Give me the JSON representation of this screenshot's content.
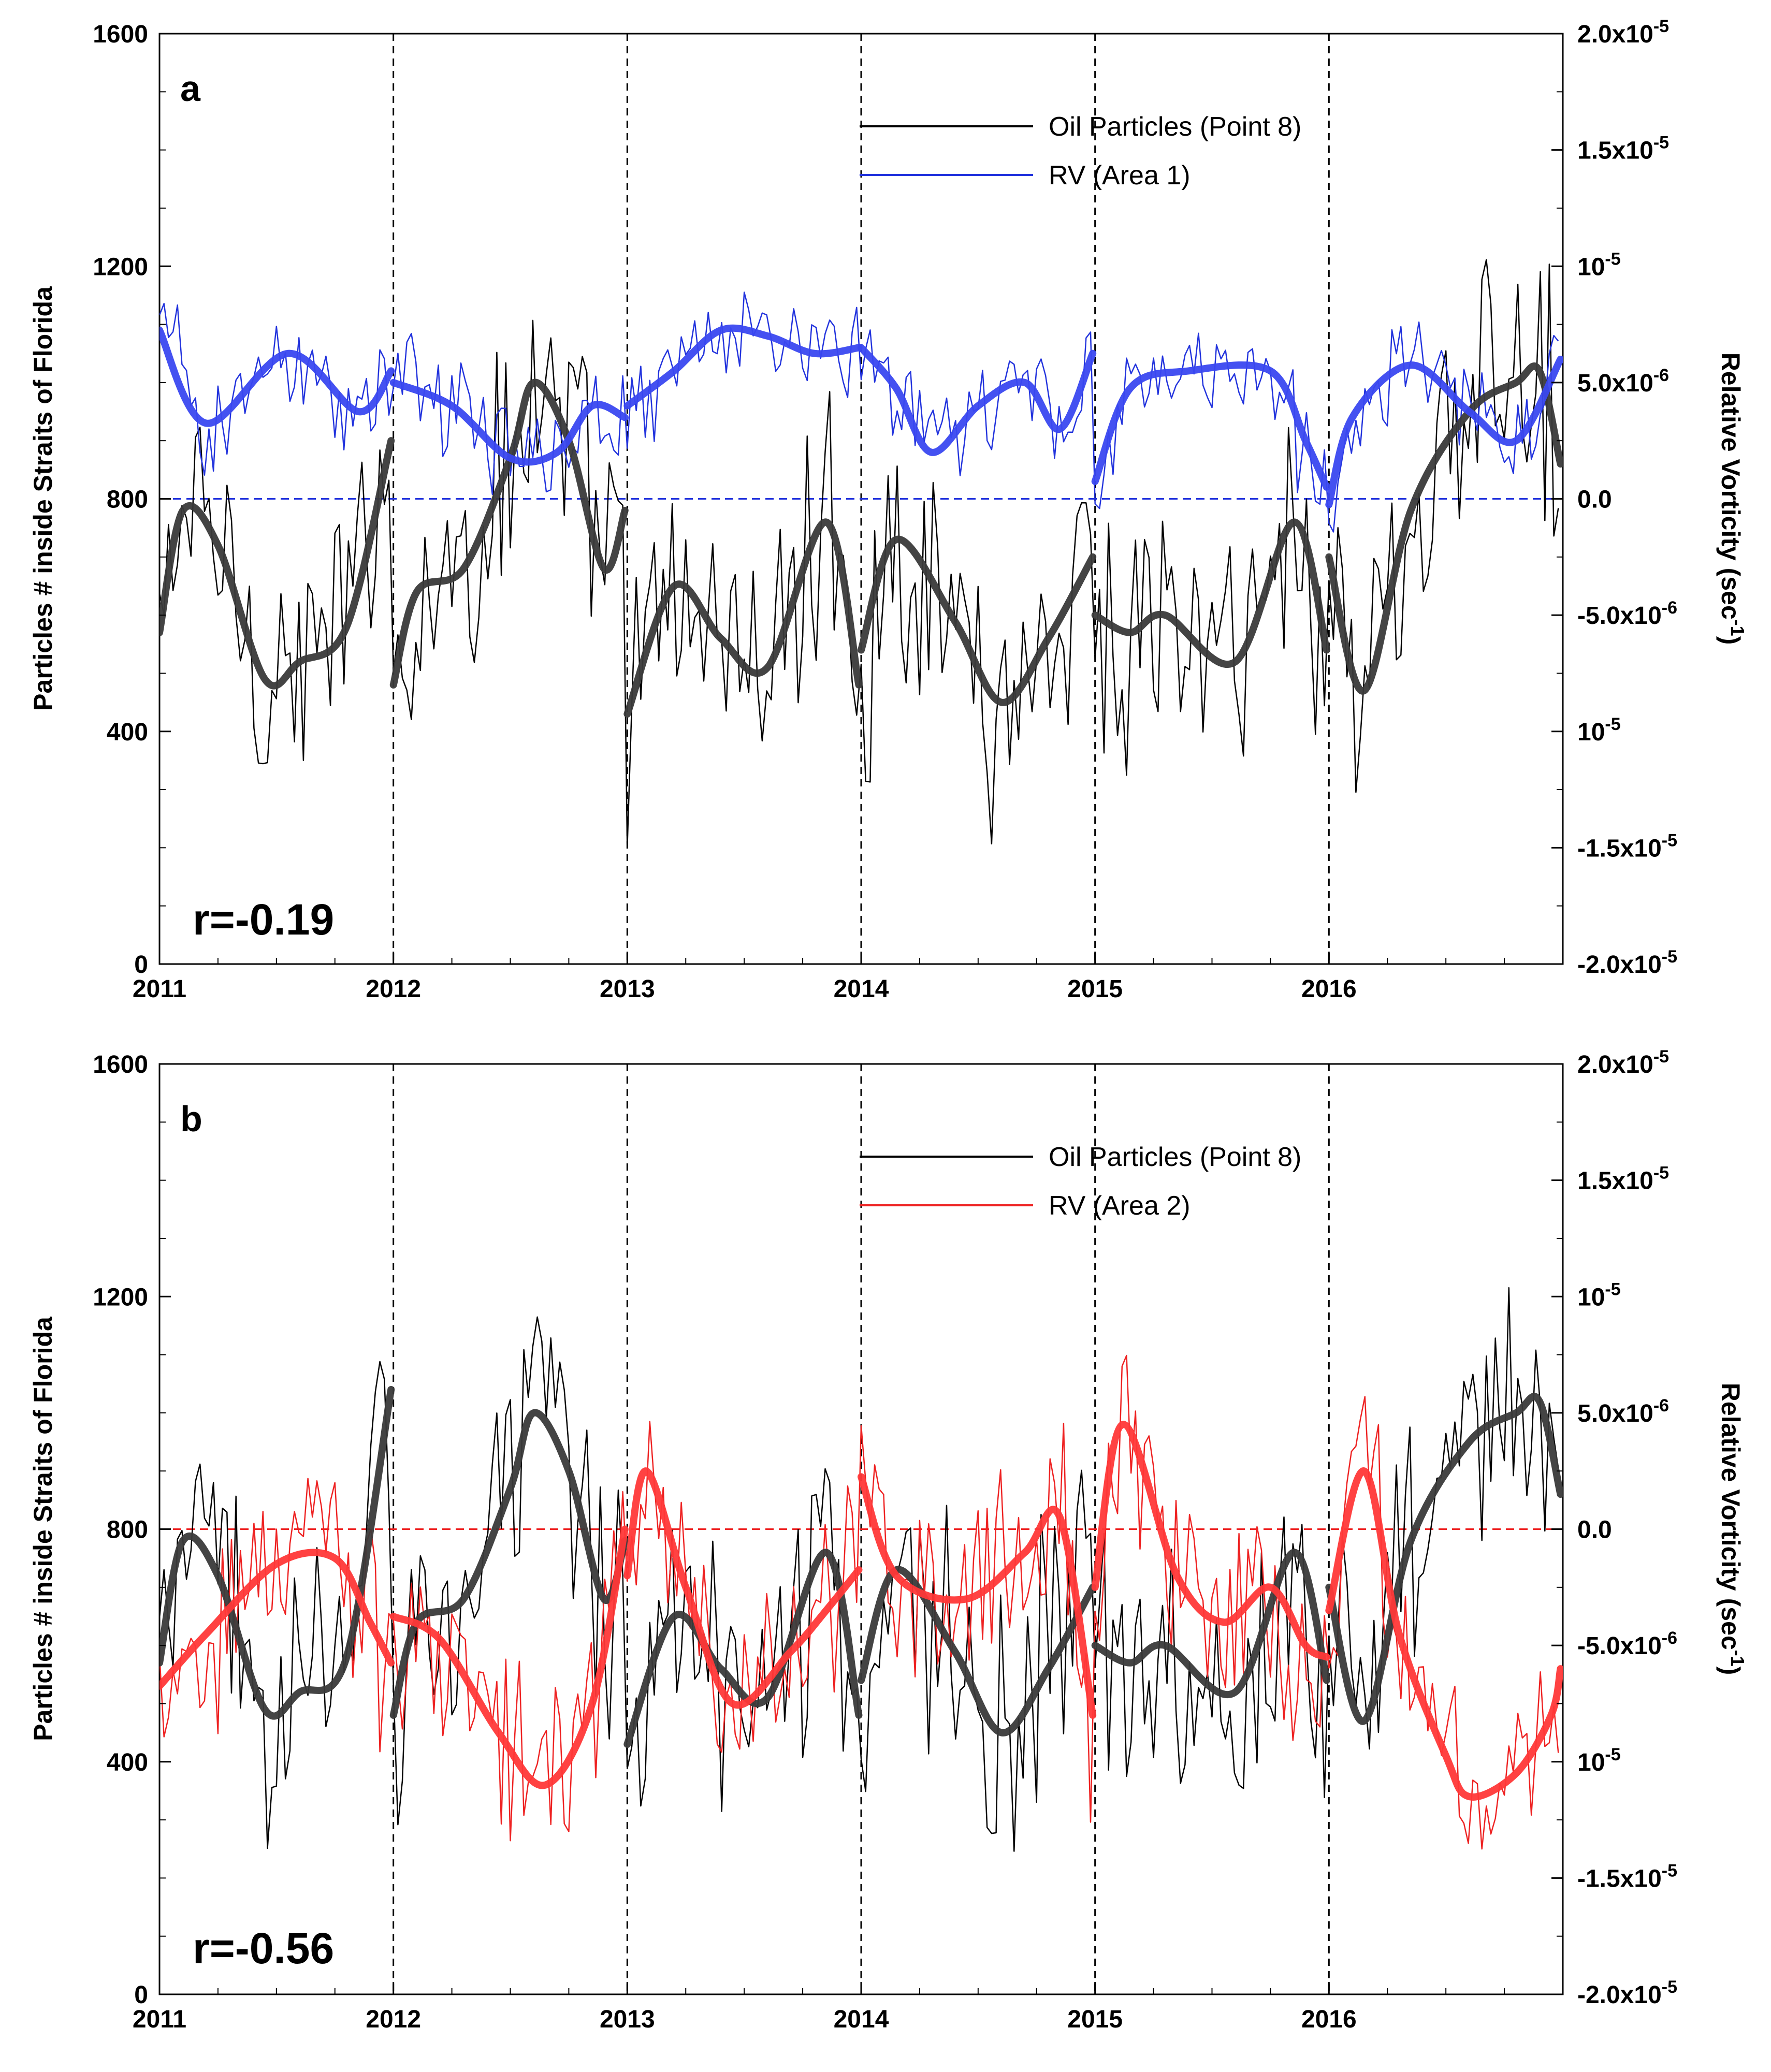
{
  "chart_data": [
    {
      "type": "line",
      "panel": "a",
      "correlation": "r=-0.19",
      "ylabel_left": "Particles # inside Straits of Florida",
      "ylabel_right": "Relative Vorticity (sec",
      "ylabel_right_sup": "-1",
      "ylabel_right_close": ")",
      "ylim_left": [
        0,
        1600
      ],
      "left_ticks": [
        "0",
        "400",
        "800",
        "1200",
        "1600"
      ],
      "ylim_right": [
        -2e-05,
        2e-05
      ],
      "right_ticks": [
        {
          "base": "-2.0x10",
          "exp": "-5"
        },
        {
          "base": "-1.5x10",
          "exp": "-5"
        },
        {
          "base": "10",
          "exp": "-5"
        },
        {
          "base": "-5.0x10",
          "exp": "-6"
        },
        {
          "base": "0.0",
          "exp": ""
        },
        {
          "base": "5.0x10",
          "exp": "-6"
        },
        {
          "base": "10",
          "exp": "-5"
        },
        {
          "base": "1.5x10",
          "exp": "-5"
        },
        {
          "base": "2.0x10",
          "exp": "-5"
        }
      ],
      "xlim": [
        2011,
        2017
      ],
      "x_ticks": [
        "2011",
        "2012",
        "2013",
        "2014",
        "2015",
        "2016"
      ],
      "year_dividers": [
        2012,
        2013,
        2014,
        2015,
        2016
      ],
      "zero_line_color": "#2233dd",
      "series": [
        {
          "name": "Oil Particles (Point 8)",
          "axis": "left",
          "color": "#000000",
          "smooth_color": "#3a3a3a",
          "smooth_by_year": [
            [
              [
                2011.0,
                570
              ],
              [
                2011.1,
                780
              ],
              [
                2011.25,
                720
              ],
              [
                2011.45,
                490
              ],
              [
                2011.6,
                520
              ],
              [
                2011.8,
                580
              ],
              [
                2011.99,
                900
              ]
            ],
            [
              [
                2012.0,
                480
              ],
              [
                2012.1,
                640
              ],
              [
                2012.3,
                680
              ],
              [
                2012.5,
                870
              ],
              [
                2012.6,
                1000
              ],
              [
                2012.75,
                900
              ],
              [
                2012.9,
                680
              ],
              [
                2012.99,
                780
              ]
            ],
            [
              [
                2013.0,
                430
              ],
              [
                2013.2,
                650
              ],
              [
                2013.4,
                560
              ],
              [
                2013.6,
                510
              ],
              [
                2013.85,
                760
              ],
              [
                2013.99,
                480
              ]
            ],
            [
              [
                2014.0,
                540
              ],
              [
                2014.15,
                730
              ],
              [
                2014.4,
                590
              ],
              [
                2014.6,
                450
              ],
              [
                2014.8,
                560
              ],
              [
                2014.99,
                700
              ]
            ],
            [
              [
                2015.0,
                600
              ],
              [
                2015.15,
                570
              ],
              [
                2015.3,
                600
              ],
              [
                2015.6,
                520
              ],
              [
                2015.85,
                760
              ],
              [
                2015.99,
                540
              ]
            ],
            [
              [
                2016.0,
                700
              ],
              [
                2016.15,
                470
              ],
              [
                2016.35,
                780
              ],
              [
                2016.6,
                950
              ],
              [
                2016.8,
                1000
              ],
              [
                2016.9,
                1020
              ],
              [
                2016.99,
                860
              ]
            ]
          ]
        },
        {
          "name": "RV (Area 1)",
          "axis": "right",
          "color": "#2233dd",
          "smooth_color": "#3a48f0",
          "smooth_by_year": [
            [
              [
                2011.0,
                1090
              ],
              [
                2011.2,
                930
              ],
              [
                2011.55,
                1050
              ],
              [
                2011.85,
                950
              ],
              [
                2011.99,
                1020
              ]
            ],
            [
              [
                2012.0,
                1000
              ],
              [
                2012.25,
                960
              ],
              [
                2012.5,
                870
              ],
              [
                2012.7,
                880
              ],
              [
                2012.85,
                960
              ],
              [
                2012.99,
                940
              ]
            ],
            [
              [
                2013.0,
                960
              ],
              [
                2013.2,
                1020
              ],
              [
                2013.4,
                1090
              ],
              [
                2013.6,
                1080
              ],
              [
                2013.8,
                1050
              ],
              [
                2013.99,
                1060
              ]
            ],
            [
              [
                2014.0,
                1060
              ],
              [
                2014.15,
                990
              ],
              [
                2014.3,
                880
              ],
              [
                2014.5,
                960
              ],
              [
                2014.7,
                1000
              ],
              [
                2014.85,
                920
              ],
              [
                2014.99,
                1050
              ]
            ],
            [
              [
                2015.0,
                830
              ],
              [
                2015.15,
                990
              ],
              [
                2015.4,
                1020
              ],
              [
                2015.75,
                1020
              ],
              [
                2015.9,
                900
              ],
              [
                2015.99,
                820
              ]
            ],
            [
              [
                2016.0,
                790
              ],
              [
                2016.1,
                940
              ],
              [
                2016.35,
                1030
              ],
              [
                2016.6,
                950
              ],
              [
                2016.8,
                900
              ],
              [
                2016.99,
                1040
              ]
            ]
          ]
        }
      ]
    },
    {
      "type": "line",
      "panel": "b",
      "correlation": "r=-0.56",
      "ylabel_left": "Particles # inside Straits of Florida",
      "ylabel_right": "Relative Vorticity (sec",
      "ylabel_right_sup": "-1",
      "ylabel_right_close": ")",
      "ylim_left": [
        0,
        1600
      ],
      "left_ticks": [
        "0",
        "400",
        "800",
        "1200",
        "1600"
      ],
      "ylim_right": [
        -2e-05,
        2e-05
      ],
      "right_ticks": [
        {
          "base": "-2.0x10",
          "exp": "-5"
        },
        {
          "base": "-1.5x10",
          "exp": "-5"
        },
        {
          "base": "10",
          "exp": "-5"
        },
        {
          "base": "-5.0x10",
          "exp": "-6"
        },
        {
          "base": "0.0",
          "exp": ""
        },
        {
          "base": "5.0x10",
          "exp": "-6"
        },
        {
          "base": "10",
          "exp": "-5"
        },
        {
          "base": "1.5x10",
          "exp": "-5"
        },
        {
          "base": "2.0x10",
          "exp": "-5"
        }
      ],
      "xlim": [
        2011,
        2017
      ],
      "x_ticks": [
        "2011",
        "2012",
        "2013",
        "2014",
        "2015",
        "2016"
      ],
      "year_dividers": [
        2012,
        2013,
        2014,
        2015,
        2016
      ],
      "zero_line_color": "#ee2222",
      "series": [
        {
          "name": "Oil Particles (Point 8)",
          "axis": "left",
          "color": "#000000",
          "smooth_color": "#3a3a3a",
          "smooth_by_year": [
            [
              [
                2011.0,
                570
              ],
              [
                2011.1,
                780
              ],
              [
                2011.25,
                720
              ],
              [
                2011.45,
                490
              ],
              [
                2011.6,
                520
              ],
              [
                2011.8,
                580
              ],
              [
                2011.99,
                1040
              ]
            ],
            [
              [
                2012.0,
                480
              ],
              [
                2012.1,
                640
              ],
              [
                2012.3,
                680
              ],
              [
                2012.5,
                870
              ],
              [
                2012.6,
                1000
              ],
              [
                2012.75,
                900
              ],
              [
                2012.9,
                680
              ],
              [
                2012.99,
                780
              ]
            ],
            [
              [
                2013.0,
                430
              ],
              [
                2013.2,
                650
              ],
              [
                2013.4,
                560
              ],
              [
                2013.6,
                510
              ],
              [
                2013.85,
                760
              ],
              [
                2013.99,
                480
              ]
            ],
            [
              [
                2014.0,
                540
              ],
              [
                2014.15,
                730
              ],
              [
                2014.4,
                590
              ],
              [
                2014.6,
                450
              ],
              [
                2014.8,
                560
              ],
              [
                2014.99,
                700
              ]
            ],
            [
              [
                2015.0,
                600
              ],
              [
                2015.15,
                570
              ],
              [
                2015.3,
                600
              ],
              [
                2015.6,
                520
              ],
              [
                2015.85,
                760
              ],
              [
                2015.99,
                540
              ]
            ],
            [
              [
                2016.0,
                700
              ],
              [
                2016.15,
                470
              ],
              [
                2016.35,
                780
              ],
              [
                2016.6,
                950
              ],
              [
                2016.8,
                1000
              ],
              [
                2016.9,
                1020
              ],
              [
                2016.99,
                860
              ]
            ]
          ]
        },
        {
          "name": "RV (Area 2)",
          "axis": "right",
          "color": "#ee2222",
          "smooth_color": "#ff3838",
          "smooth_by_year": [
            [
              [
                2011.0,
                530
              ],
              [
                2011.2,
                620
              ],
              [
                2011.5,
                740
              ],
              [
                2011.75,
                750
              ],
              [
                2011.9,
                640
              ],
              [
                2011.99,
                570
              ]
            ],
            [
              [
                2012.0,
                650
              ],
              [
                2012.2,
                610
              ],
              [
                2012.45,
                450
              ],
              [
                2012.65,
                360
              ],
              [
                2012.85,
                500
              ],
              [
                2012.99,
                800
              ]
            ],
            [
              [
                2013.0,
                720
              ],
              [
                2013.08,
                900
              ],
              [
                2013.25,
                700
              ],
              [
                2013.45,
                500
              ],
              [
                2013.7,
                590
              ],
              [
                2013.85,
                660
              ],
              [
                2013.99,
                730
              ]
            ],
            [
              [
                2014.0,
                890
              ],
              [
                2014.15,
                720
              ],
              [
                2014.45,
                680
              ],
              [
                2014.7,
                760
              ],
              [
                2014.85,
                820
              ],
              [
                2014.99,
                480
              ]
            ],
            [
              [
                2015.0,
                700
              ],
              [
                2015.12,
                980
              ],
              [
                2015.35,
                720
              ],
              [
                2015.55,
                640
              ],
              [
                2015.75,
                700
              ],
              [
                2015.9,
                600
              ],
              [
                2015.99,
                580
              ]
            ],
            [
              [
                2016.0,
                660
              ],
              [
                2016.15,
                900
              ],
              [
                2016.3,
                620
              ],
              [
                2016.5,
                410
              ],
              [
                2016.6,
                340
              ],
              [
                2016.8,
                380
              ],
              [
                2016.95,
                480
              ],
              [
                2016.99,
                560
              ]
            ]
          ]
        }
      ]
    }
  ]
}
